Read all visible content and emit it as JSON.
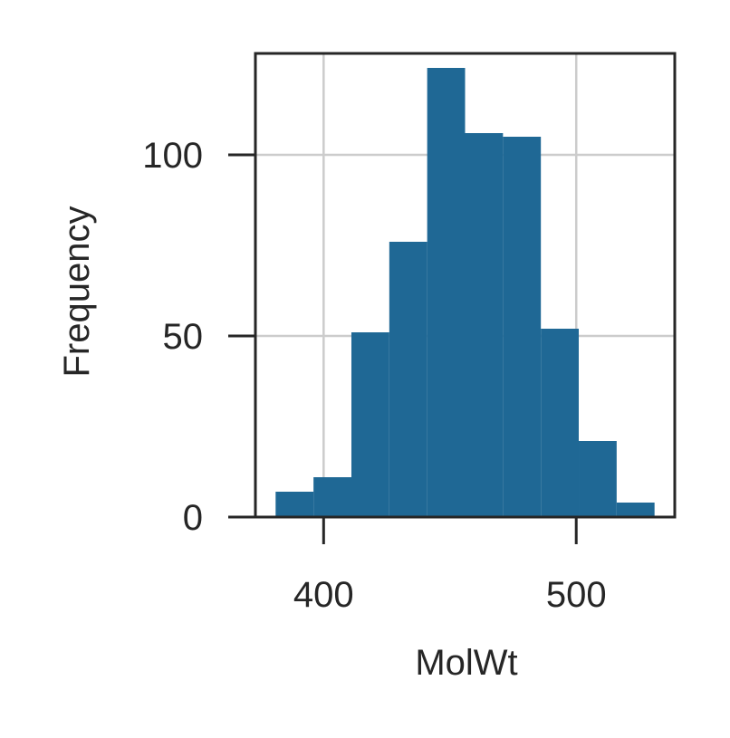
{
  "chart_data": {
    "type": "histogram",
    "xlabel": "MolWt",
    "ylabel": "Frequency",
    "xlim": [
      373,
      539
    ],
    "ylim": [
      0,
      128
    ],
    "x_ticks": [
      400,
      500
    ],
    "y_ticks": [
      0,
      50,
      100
    ],
    "grid": true,
    "bar_color": "#1f6895",
    "bins": [
      {
        "start": 381,
        "end": 396,
        "count": 7
      },
      {
        "start": 396,
        "end": 411,
        "count": 11
      },
      {
        "start": 411,
        "end": 426,
        "count": 51
      },
      {
        "start": 426,
        "end": 441,
        "count": 76
      },
      {
        "start": 441,
        "end": 456,
        "count": 124
      },
      {
        "start": 456,
        "end": 471,
        "count": 106
      },
      {
        "start": 471,
        "end": 486,
        "count": 105
      },
      {
        "start": 486,
        "end": 501,
        "count": 52
      },
      {
        "start": 501,
        "end": 516,
        "count": 21
      },
      {
        "start": 516,
        "end": 531,
        "count": 4
      }
    ]
  }
}
